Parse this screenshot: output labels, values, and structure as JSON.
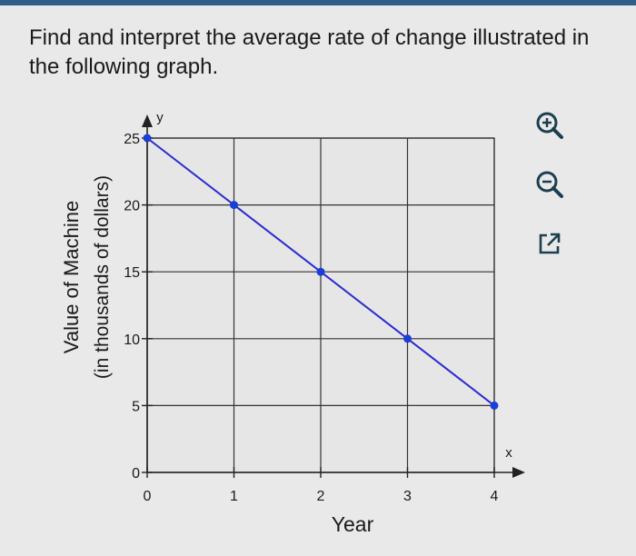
{
  "question": {
    "line1": "Find and interpret the average rate of change illustrated in",
    "line2": "the following graph."
  },
  "colors": {
    "line": "#2a2ad0",
    "point": "#1a3fd6",
    "grid": "#333333",
    "background": "#e9e9e9"
  },
  "tools": {
    "zoom_in": "zoom-in-icon",
    "zoom_out": "zoom-out-icon",
    "expand": "expand-icon"
  },
  "chart_data": {
    "type": "line",
    "xlabel": "Year",
    "ylabel_line1": "Value of Machine",
    "ylabel_line2": "(in thousands of dollars)",
    "x_axis_letter": "x",
    "y_axis_letter": "y",
    "xlim": [
      0,
      4
    ],
    "ylim": [
      0,
      25
    ],
    "x_ticks": [
      "0",
      "1",
      "2",
      "3",
      "4"
    ],
    "y_ticks": [
      "0",
      "5",
      "10",
      "15",
      "20",
      "25"
    ],
    "grid": true,
    "series": [
      {
        "x": [
          0,
          1,
          2,
          3,
          4
        ],
        "y": [
          25,
          20,
          15,
          10,
          5
        ]
      }
    ]
  }
}
